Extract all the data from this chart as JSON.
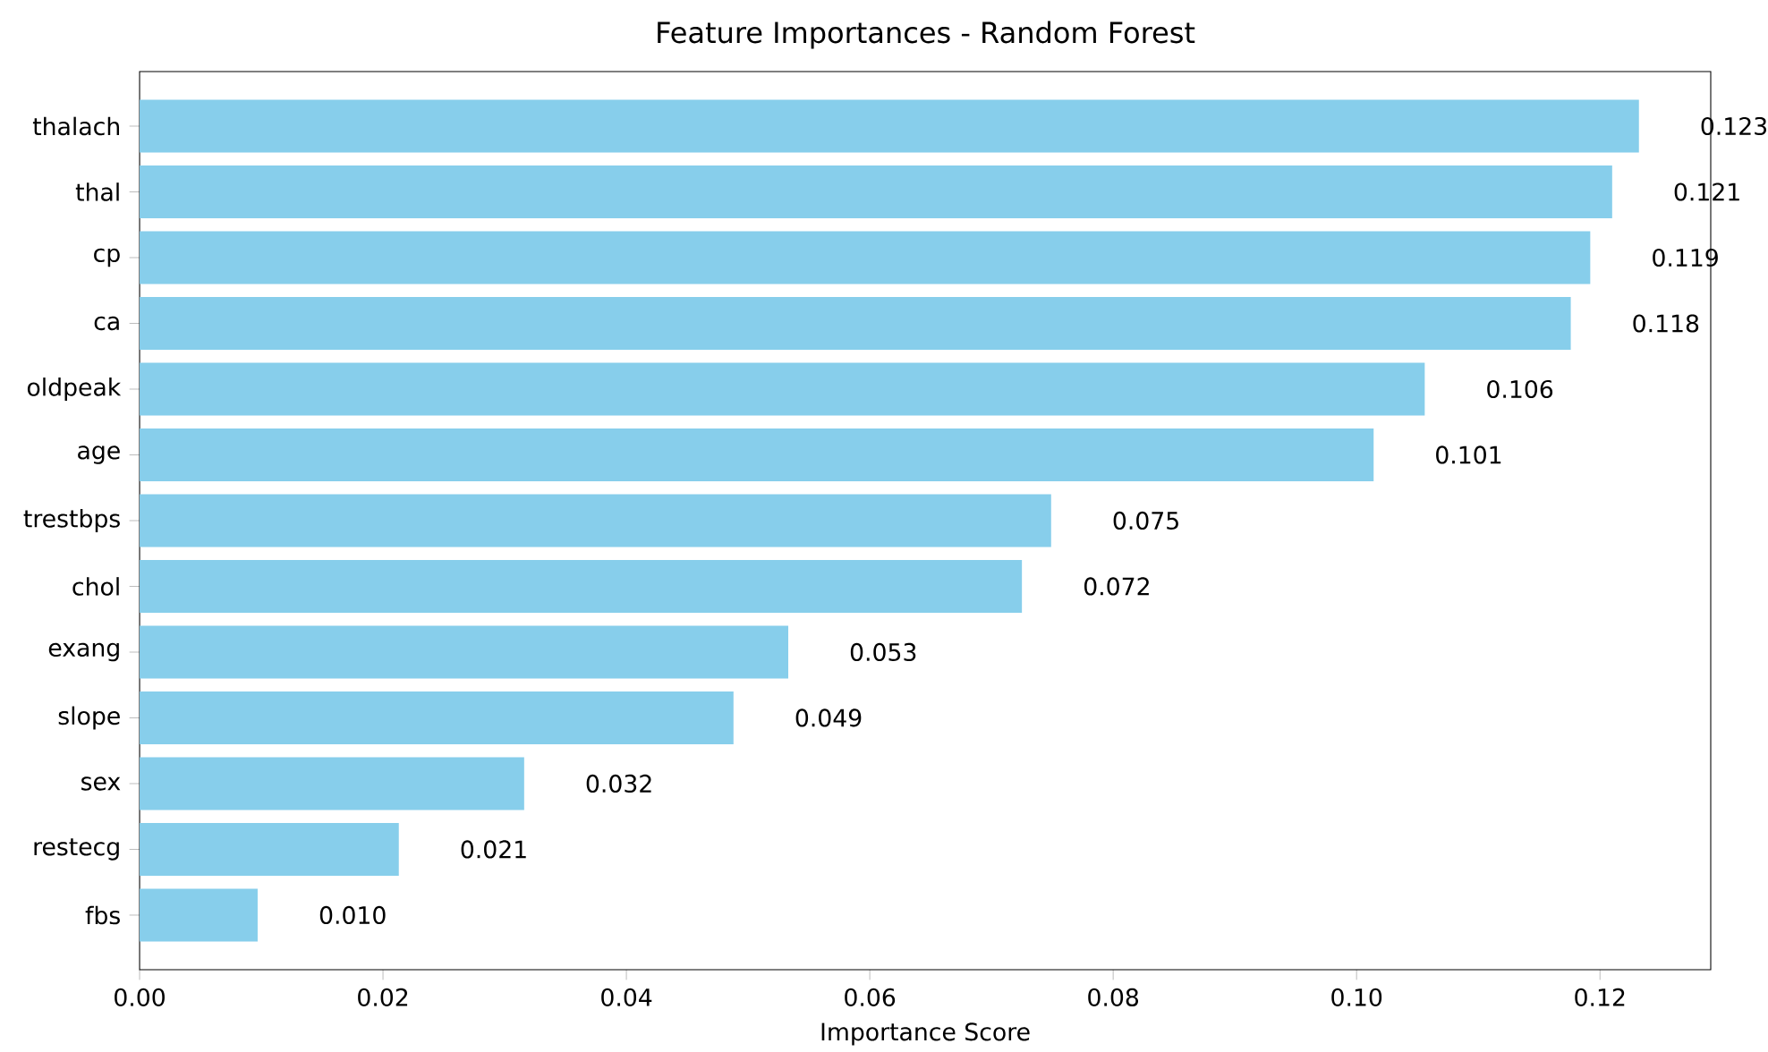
{
  "chart_data": {
    "type": "bar",
    "orientation": "horizontal",
    "title": "Feature Importances - Random Forest",
    "xlabel": "Importance Score",
    "categories": [
      "thalach",
      "thal",
      "cp",
      "ca",
      "oldpeak",
      "age",
      "trestbps",
      "chol",
      "exang",
      "slope",
      "sex",
      "restecg",
      "fbs"
    ],
    "values": [
      0.1232,
      0.121,
      0.1192,
      0.1176,
      0.1056,
      0.1014,
      0.0749,
      0.0725,
      0.0533,
      0.0488,
      0.0316,
      0.0213,
      0.0097
    ],
    "value_labels": [
      "0.123",
      "0.121",
      "0.119",
      "0.118",
      "0.106",
      "0.101",
      "0.075",
      "0.072",
      "0.053",
      "0.049",
      "0.032",
      "0.021",
      "0.010"
    ],
    "color": "#87ceeb",
    "xlim": [
      0,
      0.1291
    ],
    "xticks": [
      {
        "value": 0,
        "label": "0.00"
      },
      {
        "value": 0.02,
        "label": "0.02"
      },
      {
        "value": 0.04,
        "label": "0.04"
      },
      {
        "value": 0.06,
        "label": "0.06"
      },
      {
        "value": 0.08,
        "label": "0.08"
      },
      {
        "value": 0.1,
        "label": "0.10"
      },
      {
        "value": 0.12,
        "label": "0.12"
      }
    ]
  }
}
